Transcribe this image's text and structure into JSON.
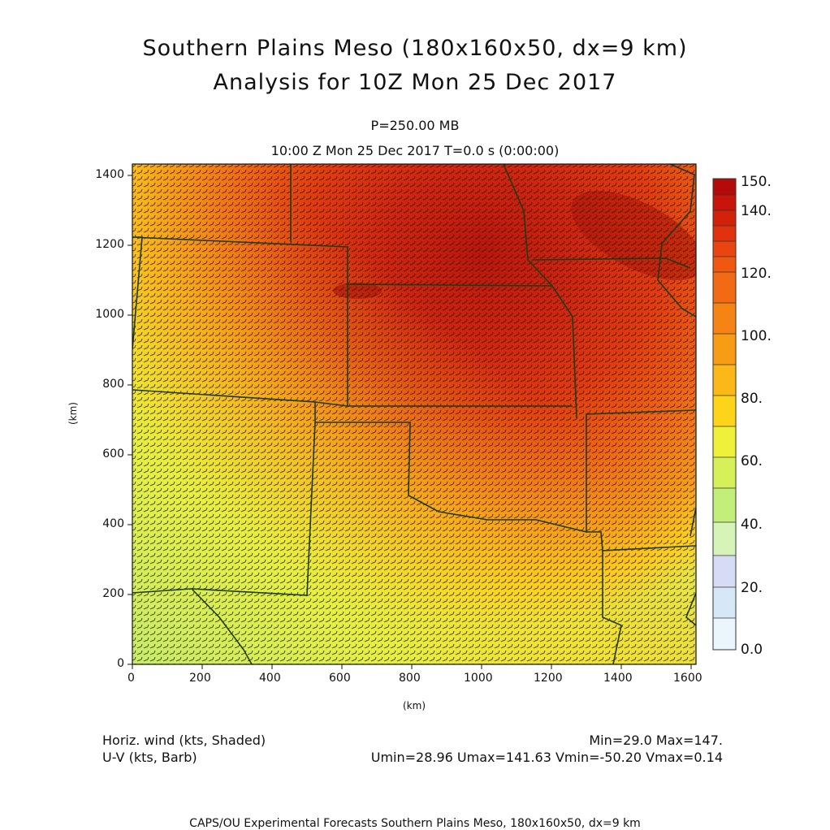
{
  "header": {
    "title_line1": "Southern Plains Meso (180x160x50, dx=9 km)",
    "title_line2": "Analysis for 10Z Mon 25 Dec 2017",
    "level": "P=250.00 MB",
    "time": "10:00 Z Mon 25 Dec 2017    T=0.0 s (0:00:00)"
  },
  "axes": {
    "ylabel": "(km)",
    "xlabel": "(km)",
    "x_ticks": [
      "0",
      "200",
      "400",
      "600",
      "800",
      "1000",
      "1200",
      "1400",
      "1600"
    ],
    "y_ticks": [
      "0",
      "200",
      "400",
      "600",
      "800",
      "1000",
      "1200",
      "1400"
    ]
  },
  "colorbar": {
    "labels": [
      "150.",
      "140.",
      "120.",
      "100.",
      "80.",
      "60.",
      "40.",
      "20.",
      "0.0"
    ],
    "colors": [
      "#b40a0a",
      "#cc1a0a",
      "#e02a0a",
      "#f04814",
      "#f26a14",
      "#f58a14",
      "#f9a818",
      "#fdd018",
      "#eef23a",
      "#d2f05a",
      "#bcee82",
      "#d4f4b8",
      "#d4dcf6",
      "#d4e8f8",
      "#e8f6fc"
    ]
  },
  "legend": {
    "field1": "Horiz. wind (kts, Shaded)",
    "field2": "U-V (kts, Barb)",
    "minmax": "Min=29.0 Max=147.",
    "uv_stats": "Umin=28.96 Umax=141.63 Vmin=-50.20 Vmax=0.14"
  },
  "footer": {
    "text": "CAPS/OU Experimental Forecasts  Southern Plains Meso, 180x160x50, dx=9 km"
  }
}
